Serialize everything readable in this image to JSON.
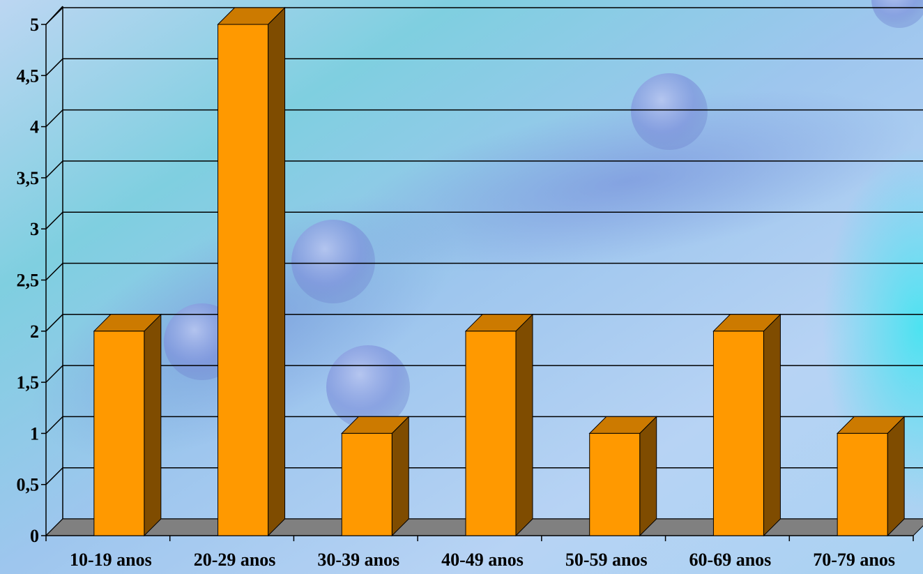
{
  "chart_data": {
    "type": "bar",
    "style": "3d-column",
    "categories": [
      "10-19 anos",
      "20-29 anos",
      "30-39 anos",
      "40-49 anos",
      "50-59 anos",
      "60-69 anos",
      "70-79 anos"
    ],
    "values": [
      2,
      5,
      1,
      2,
      1,
      2,
      1
    ],
    "ylim": [
      0,
      5
    ],
    "ytick_values": [
      0,
      0.5,
      1,
      1.5,
      2,
      2.5,
      3,
      3.5,
      4,
      4.5,
      5
    ],
    "ytick_labels": [
      "0",
      "0,5",
      "1",
      "1,5",
      "2",
      "2,5",
      "3",
      "3,5",
      "4",
      "4,5",
      "5"
    ],
    "grid": true,
    "legend": "none",
    "colors": {
      "bar_front": "#FF9900",
      "bar_top": "#CC7A00",
      "bar_side": "#7F4C00",
      "floor": "#808080",
      "gridline": "#000000"
    }
  }
}
